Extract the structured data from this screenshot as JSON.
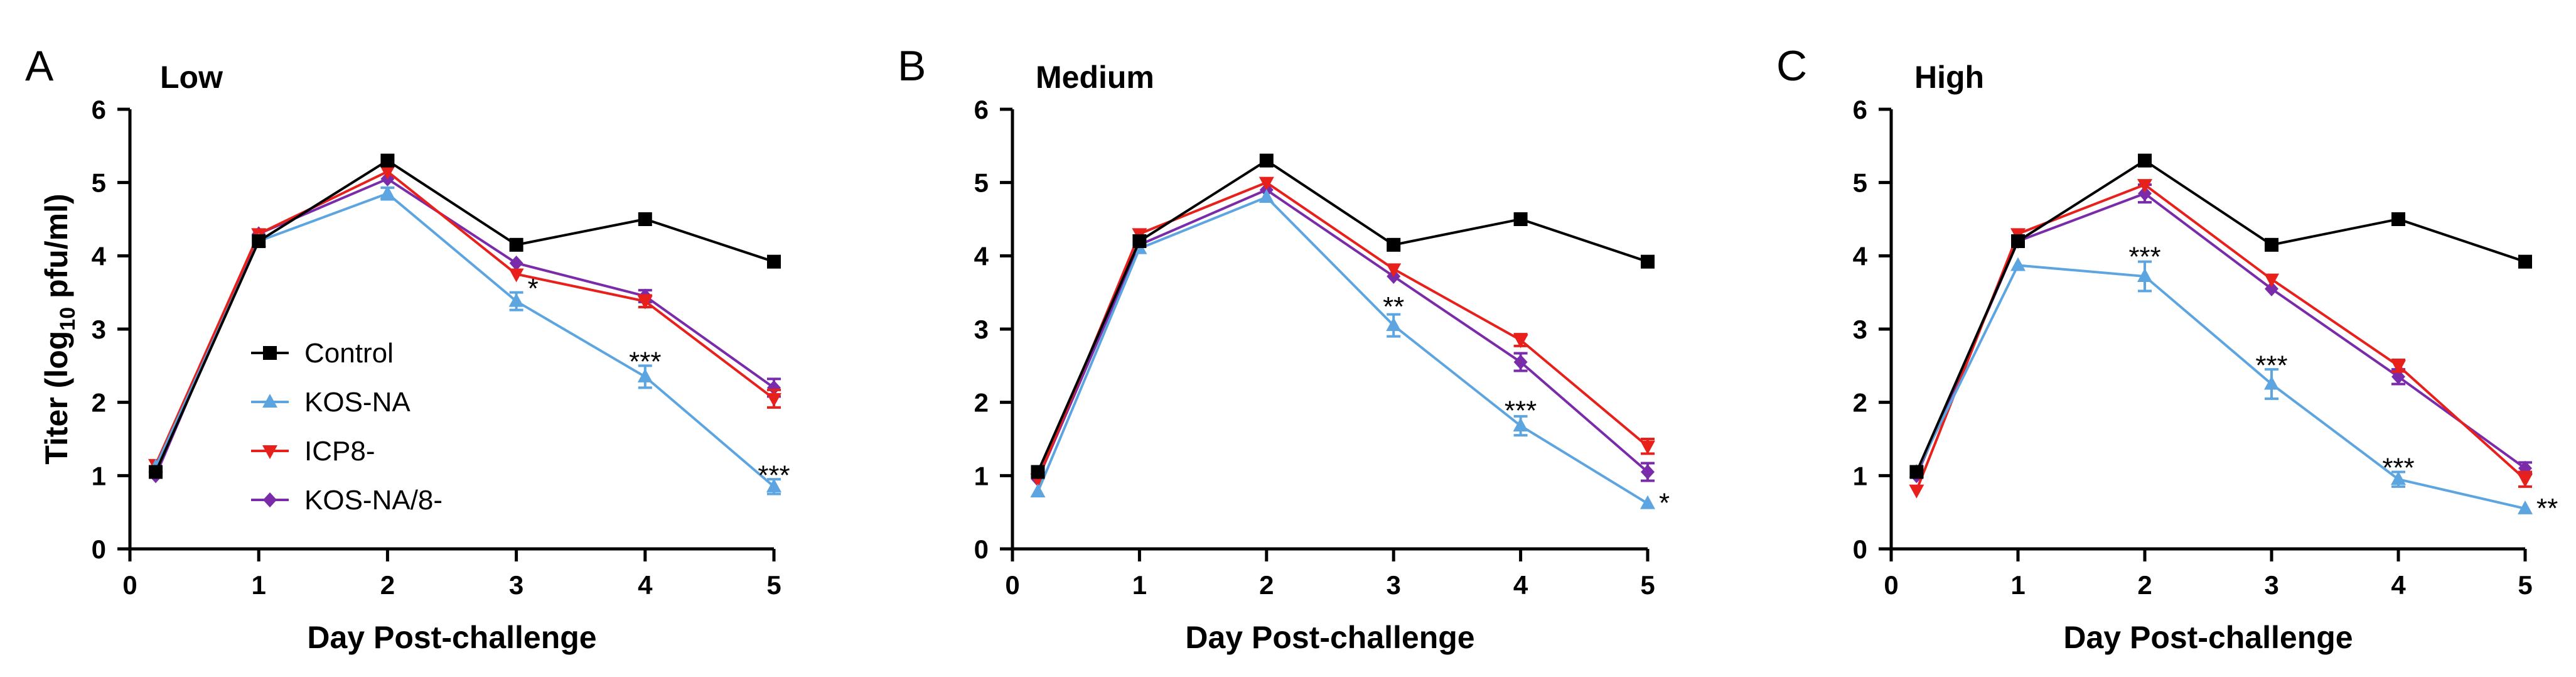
{
  "chart_data": [
    {
      "type": "line",
      "panel_letter": "A",
      "title": "Low",
      "xlabel": "Day Post-challenge",
      "ylabel_pre": "Titer (log",
      "ylabel_sub": "10",
      "ylabel_post": " pfu/ml)",
      "xlim": [
        0,
        5
      ],
      "ylim": [
        0,
        6
      ],
      "x_ticks": [
        0,
        1,
        2,
        3,
        4,
        5
      ],
      "y_ticks": [
        0,
        1,
        2,
        3,
        4,
        5,
        6
      ],
      "legend_position": "center-left",
      "series": [
        {
          "name": "Control",
          "color": "#000000",
          "marker": "square",
          "x": [
            0.2,
            1,
            2,
            3,
            4,
            5
          ],
          "values": [
            1.05,
            4.2,
            5.3,
            4.15,
            4.5,
            3.92
          ],
          "errors": [
            0.05,
            0.05,
            0.05,
            0.05,
            0.05,
            0.05
          ]
        },
        {
          "name": "KOS-NA",
          "color": "#5DA5E0",
          "marker": "triangle-up",
          "x": [
            0.2,
            1,
            2,
            3,
            4,
            5
          ],
          "values": [
            1.12,
            4.2,
            4.85,
            3.38,
            2.35,
            0.85
          ],
          "errors": [
            0.05,
            0.05,
            0.08,
            0.12,
            0.15,
            0.1
          ]
        },
        {
          "name": "ICP8-",
          "color": "#E8201C",
          "marker": "triangle-down",
          "x": [
            0.2,
            1,
            2,
            3,
            4,
            5
          ],
          "values": [
            1.15,
            4.3,
            5.15,
            3.75,
            3.38,
            2.05
          ],
          "errors": [
            0.05,
            0.05,
            0.05,
            0.06,
            0.08,
            0.12
          ]
        },
        {
          "name": "KOS-NA/8-",
          "color": "#7A2BAA",
          "marker": "diamond",
          "x": [
            0.2,
            1,
            2,
            3,
            4,
            5
          ],
          "values": [
            1.0,
            4.3,
            5.05,
            3.9,
            3.45,
            2.2
          ],
          "errors": [
            0.05,
            0.05,
            0.05,
            0.06,
            0.08,
            0.12
          ]
        }
      ],
      "annotations": [
        {
          "x": 3,
          "y": 3.55,
          "text": "*",
          "side": "right"
        },
        {
          "x": 4,
          "y": 2.55,
          "text": "***",
          "side": "center"
        },
        {
          "x": 5,
          "y": 1.0,
          "text": "***",
          "side": "center"
        }
      ]
    },
    {
      "type": "line",
      "panel_letter": "B",
      "title": "Medium",
      "xlabel": "Day Post-challenge",
      "ylabel_pre": "",
      "ylabel_sub": "",
      "ylabel_post": "",
      "xlim": [
        0,
        5
      ],
      "ylim": [
        0,
        6
      ],
      "x_ticks": [
        0,
        1,
        2,
        3,
        4,
        5
      ],
      "y_ticks": [
        0,
        1,
        2,
        3,
        4,
        5,
        6
      ],
      "series": [
        {
          "name": "Control",
          "color": "#000000",
          "marker": "square",
          "x": [
            0.2,
            1,
            2,
            3,
            4,
            5
          ],
          "values": [
            1.05,
            4.2,
            5.3,
            4.15,
            4.5,
            3.92
          ],
          "errors": [
            0.05,
            0.05,
            0.05,
            0.05,
            0.05,
            0.05
          ]
        },
        {
          "name": "KOS-NA",
          "color": "#5DA5E0",
          "marker": "triangle-up",
          "x": [
            0.2,
            1,
            2,
            3,
            4,
            5
          ],
          "values": [
            0.78,
            4.1,
            4.8,
            3.05,
            1.68,
            0.62
          ],
          "errors": [
            0.05,
            0.05,
            0.06,
            0.15,
            0.13,
            0.05
          ]
        },
        {
          "name": "ICP8-",
          "color": "#E8201C",
          "marker": "triangle-down",
          "x": [
            0.2,
            1,
            2,
            3,
            4,
            5
          ],
          "values": [
            0.95,
            4.3,
            5.0,
            3.82,
            2.85,
            1.4
          ],
          "errors": [
            0.05,
            0.05,
            0.05,
            0.06,
            0.08,
            0.1
          ]
        },
        {
          "name": "KOS-NA/8-",
          "color": "#7A2BAA",
          "marker": "diamond",
          "x": [
            0.2,
            1,
            2,
            3,
            4,
            5
          ],
          "values": [
            0.95,
            4.15,
            4.9,
            3.72,
            2.55,
            1.05
          ],
          "errors": [
            0.05,
            0.05,
            0.05,
            0.06,
            0.12,
            0.12
          ]
        }
      ],
      "annotations": [
        {
          "x": 3,
          "y": 3.3,
          "text": "**",
          "side": "center"
        },
        {
          "x": 4,
          "y": 1.88,
          "text": "***",
          "side": "center"
        },
        {
          "x": 5,
          "y": 0.62,
          "text": "*",
          "side": "right"
        }
      ]
    },
    {
      "type": "line",
      "panel_letter": "C",
      "title": "High",
      "xlabel": "Day Post-challenge",
      "ylabel_pre": "",
      "ylabel_sub": "",
      "ylabel_post": "",
      "xlim": [
        0,
        5
      ],
      "ylim": [
        0,
        6
      ],
      "x_ticks": [
        0,
        1,
        2,
        3,
        4,
        5
      ],
      "y_ticks": [
        0,
        1,
        2,
        3,
        4,
        5,
        6
      ],
      "series": [
        {
          "name": "Control",
          "color": "#000000",
          "marker": "square",
          "x": [
            0.2,
            1,
            2,
            3,
            4,
            5
          ],
          "values": [
            1.05,
            4.2,
            5.3,
            4.15,
            4.5,
            3.92
          ],
          "errors": [
            0.05,
            0.05,
            0.05,
            0.05,
            0.05,
            0.05
          ]
        },
        {
          "name": "KOS-NA",
          "color": "#5DA5E0",
          "marker": "triangle-up",
          "x": [
            0.2,
            1,
            2,
            3,
            4,
            5
          ],
          "values": [
            1.05,
            3.87,
            3.72,
            2.25,
            0.95,
            0.55
          ],
          "errors": [
            0.05,
            0.05,
            0.2,
            0.2,
            0.1,
            0.05
          ]
        },
        {
          "name": "ICP8-",
          "color": "#E8201C",
          "marker": "triangle-down",
          "x": [
            0.2,
            1,
            2,
            3,
            4,
            5
          ],
          "values": [
            0.8,
            4.3,
            4.97,
            3.68,
            2.5,
            0.95
          ],
          "errors": [
            0.05,
            0.05,
            0.05,
            0.06,
            0.08,
            0.1
          ]
        },
        {
          "name": "KOS-NA/8-",
          "color": "#7A2BAA",
          "marker": "diamond",
          "x": [
            0.2,
            1,
            2,
            3,
            4,
            5
          ],
          "values": [
            1.0,
            4.2,
            4.85,
            3.55,
            2.35,
            1.1
          ],
          "errors": [
            0.05,
            0.05,
            0.12,
            0.06,
            0.1,
            0.08
          ]
        }
      ],
      "annotations": [
        {
          "x": 2,
          "y": 3.98,
          "text": "***",
          "side": "center"
        },
        {
          "x": 3,
          "y": 2.5,
          "text": "***",
          "side": "center"
        },
        {
          "x": 4,
          "y": 1.1,
          "text": "***",
          "side": "center"
        },
        {
          "x": 5,
          "y": 0.55,
          "text": "**",
          "side": "right"
        }
      ]
    }
  ]
}
